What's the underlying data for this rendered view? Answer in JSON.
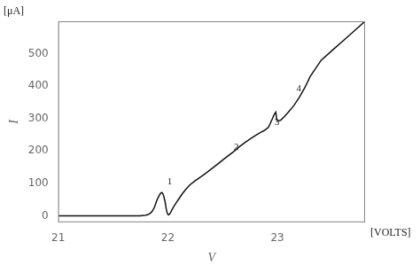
{
  "chart_data": {
    "type": "line",
    "xlabel": "V",
    "ylabel": "I",
    "xlabel_unit": "[VOLTS]",
    "ylabel_unit": "[μA]",
    "x": [
      21.0,
      21.5,
      21.7,
      21.75,
      21.78,
      21.8,
      21.82,
      21.84,
      21.86,
      21.88,
      21.9,
      21.92,
      21.935,
      21.945,
      21.955,
      21.965,
      21.975,
      21.985,
      21.995,
      22.005,
      22.015,
      22.025,
      22.04,
      22.06,
      22.08,
      22.1,
      22.13,
      22.16,
      22.2,
      22.25,
      22.3,
      22.35,
      22.4,
      22.45,
      22.5,
      22.55,
      22.6,
      22.65,
      22.7,
      22.75,
      22.8,
      22.85,
      22.88,
      22.9,
      22.915,
      22.925,
      22.935,
      22.945,
      22.955,
      22.965,
      22.975,
      22.985,
      22.995,
      23.01,
      23.03,
      23.06,
      23.1,
      23.15,
      23.2,
      23.25,
      23.3,
      23.4,
      23.5,
      23.6,
      23.7,
      23.8
    ],
    "values": [
      0,
      0,
      0,
      0,
      1,
      2,
      4,
      8,
      15,
      28,
      48,
      62,
      70,
      72,
      68,
      58,
      44,
      22,
      8,
      3,
      5,
      10,
      20,
      32,
      42,
      52,
      67,
      80,
      95,
      108,
      120,
      132,
      145,
      158,
      172,
      185,
      198,
      212,
      225,
      237,
      248,
      258,
      263,
      268,
      272,
      278,
      285,
      293,
      300,
      308,
      315,
      320,
      295,
      292,
      295,
      305,
      320,
      340,
      365,
      395,
      430,
      480,
      510,
      540,
      570,
      600
    ],
    "color": "#111111",
    "xlim": [
      21,
      23.8
    ],
    "ylim": [
      -20,
      600
    ],
    "xticks": [
      21,
      22,
      23
    ],
    "yticks": [
      0,
      100,
      200,
      300,
      400,
      500
    ],
    "grid": false,
    "annotations": [
      {
        "label": "1",
        "x": 21.97,
        "y": 82
      },
      {
        "label": "2",
        "x": 22.58,
        "y": 188
      },
      {
        "label": "3",
        "x": 22.95,
        "y": 265
      },
      {
        "label": "4",
        "x": 23.15,
        "y": 370
      }
    ]
  }
}
